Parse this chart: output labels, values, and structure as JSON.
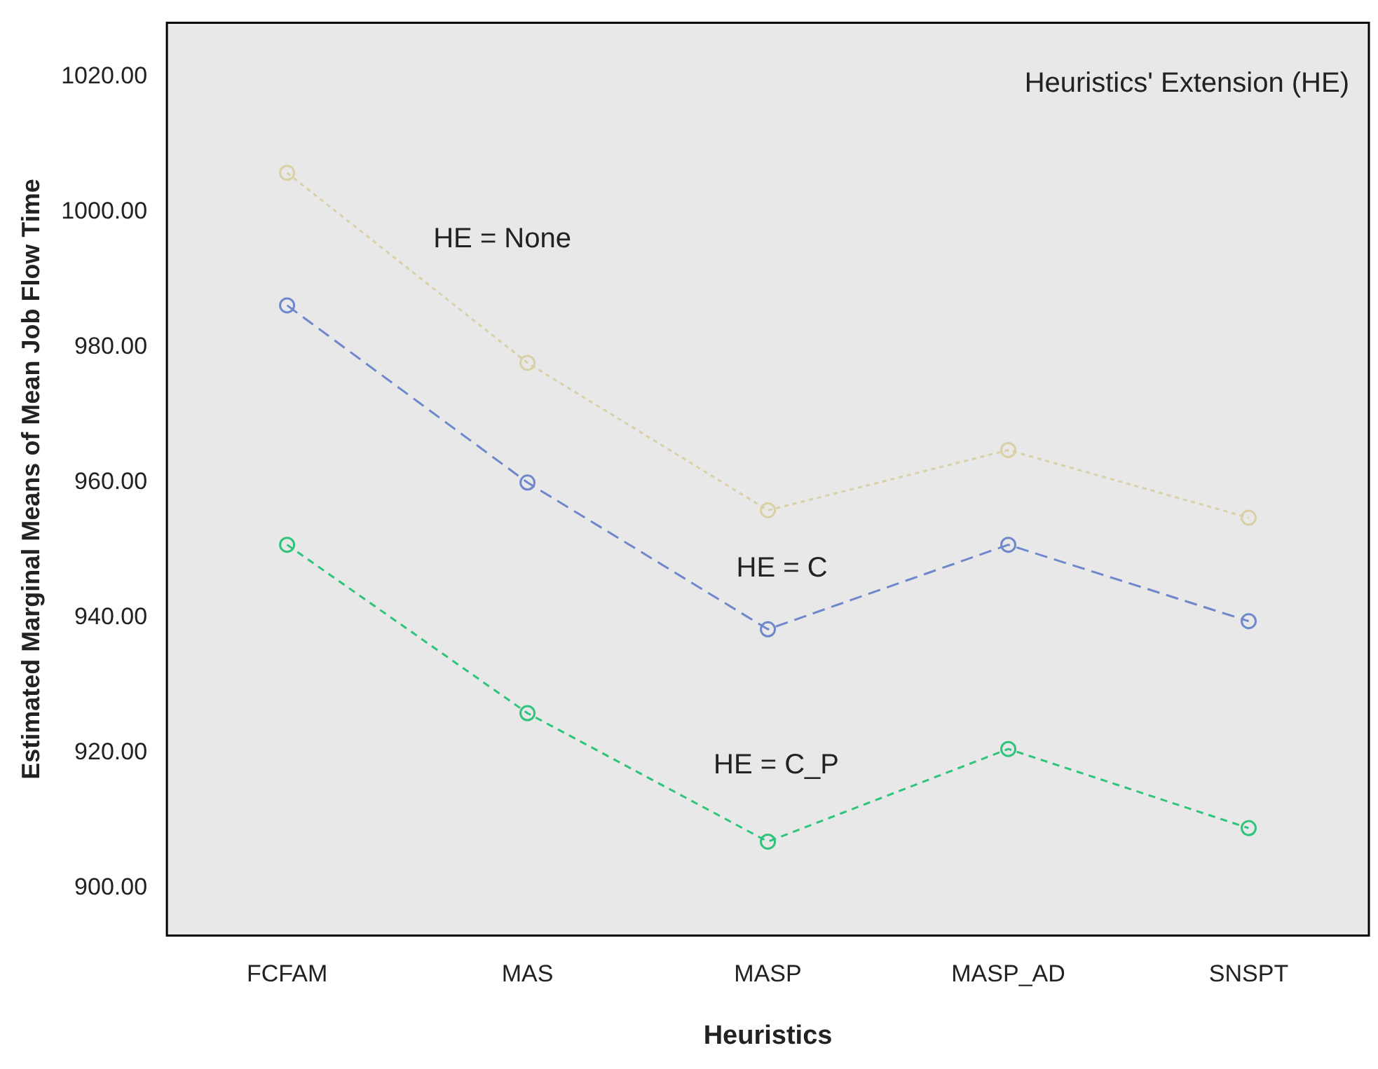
{
  "chart_data": {
    "type": "line",
    "legend_title": "Heuristics' Extension (HE)",
    "xlabel": "Heuristics",
    "ylabel": "Estimated Marginal Means of Mean Job Flow Time",
    "categories": [
      "FCFAM",
      "MAS",
      "MASP",
      "MASP_AD",
      "SNSPT"
    ],
    "series": [
      {
        "name": "HE = None",
        "color": "#d9d0a6",
        "line_style": "dotted",
        "values": [
          1005.8,
          977.7,
          955.9,
          964.8,
          954.8
        ]
      },
      {
        "name": "HE = C",
        "color": "#6f88cc",
        "line_style": "dashed",
        "values": [
          986.2,
          960.0,
          938.3,
          950.8,
          939.5
        ]
      },
      {
        "name": "HE = C_P",
        "color": "#2ec47c",
        "line_style": "dashed",
        "values": [
          950.8,
          925.9,
          906.9,
          920.6,
          908.9
        ]
      }
    ],
    "ylim": [
      893,
      1028
    ],
    "yticks": [
      {
        "value": 900,
        "label": "900.00"
      },
      {
        "value": 920,
        "label": "920.00"
      },
      {
        "value": 940,
        "label": "940.00"
      },
      {
        "value": 960,
        "label": "960.00"
      },
      {
        "value": 980,
        "label": "980.00"
      },
      {
        "value": 1000,
        "label": "1000.00"
      },
      {
        "value": 1020,
        "label": "1020.00"
      }
    ],
    "marker": "circle",
    "grid": false
  }
}
